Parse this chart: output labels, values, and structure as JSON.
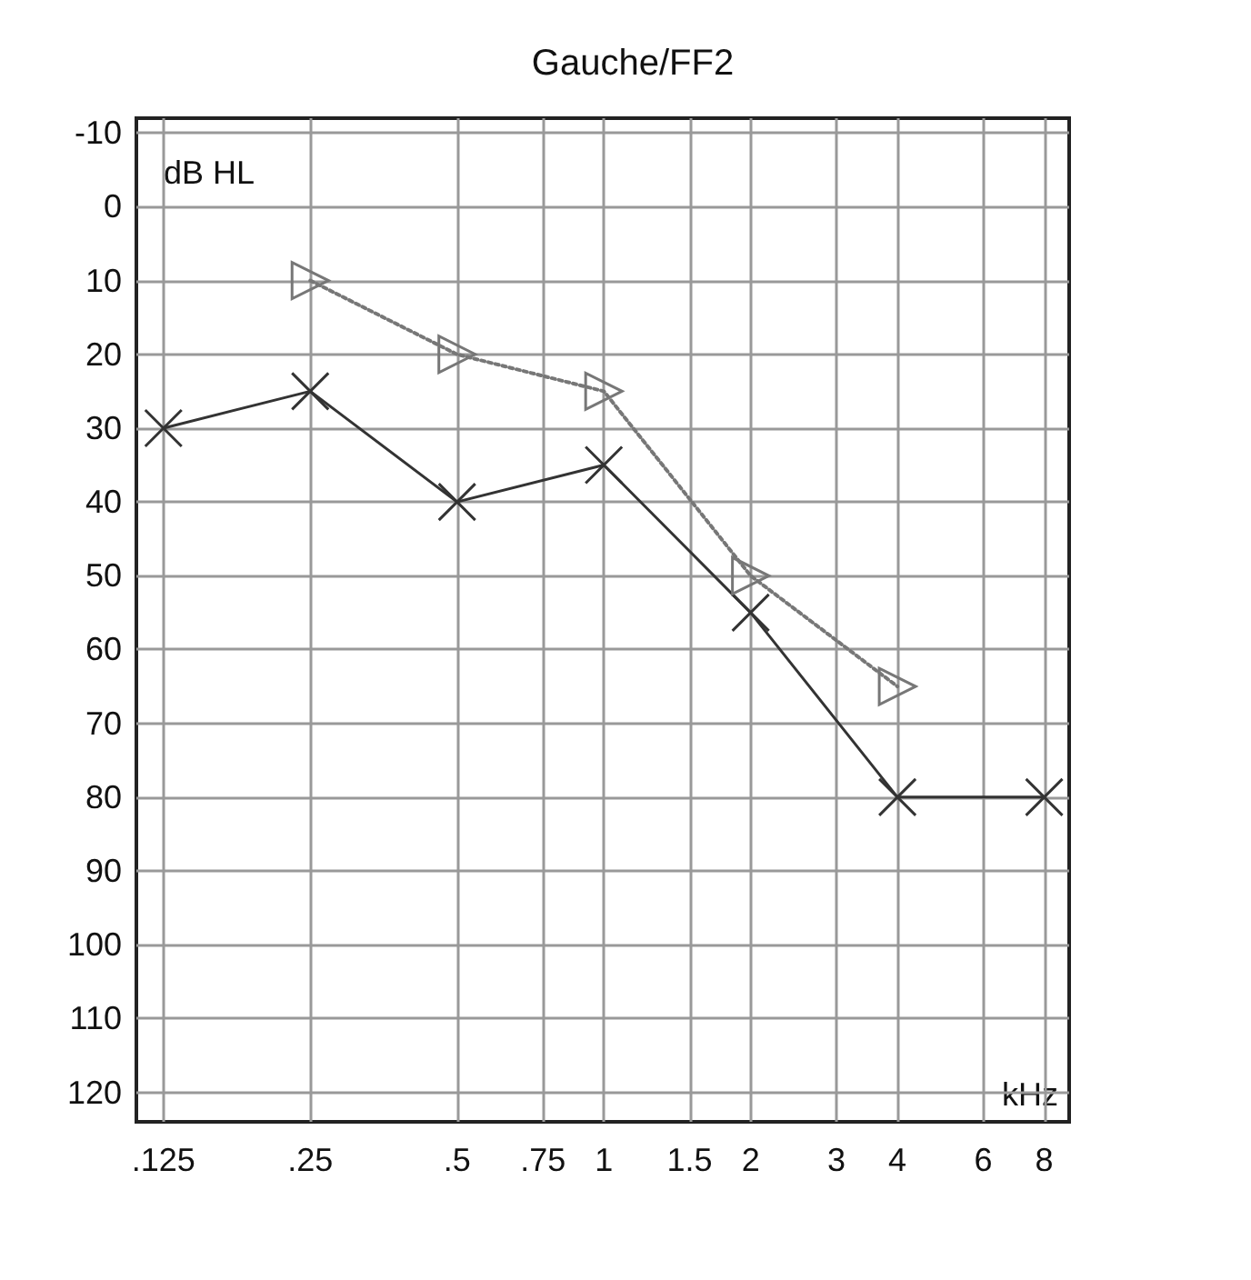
{
  "chart_data": {
    "type": "line",
    "title": "Gauche/FF2",
    "xlabel": "kHz",
    "ylabel": "dB HL",
    "log": "x",
    "x": [
      0.125,
      0.25,
      0.5,
      1,
      2,
      4,
      8
    ],
    "series": [
      {
        "color": "#333333",
        "marker": "cross",
        "line_style": "solid",
        "values": [
          30,
          25,
          40,
          35,
          55,
          80,
          80
        ]
      },
      {
        "color": "#777777",
        "marker": "triangle",
        "line_style": "dotted",
        "values": [
          null,
          10,
          20,
          25,
          50,
          65,
          null
        ]
      }
    ],
    "xlim": [
      0.11,
      9
    ],
    "xticks": [
      {
        "value": 0.125,
        "label": ".125"
      },
      {
        "value": 0.25,
        "label": ".25"
      },
      {
        "value": 0.5,
        "label": ".5"
      },
      {
        "value": 0.75,
        "label": ".75"
      },
      1,
      1.5,
      2,
      3,
      4,
      6,
      8
    ],
    "ylim": [
      124,
      -12
    ],
    "yticks": [
      -10,
      0,
      10,
      20,
      30,
      40,
      50,
      60,
      70,
      80,
      90,
      100,
      110,
      120
    ],
    "grid": true
  }
}
